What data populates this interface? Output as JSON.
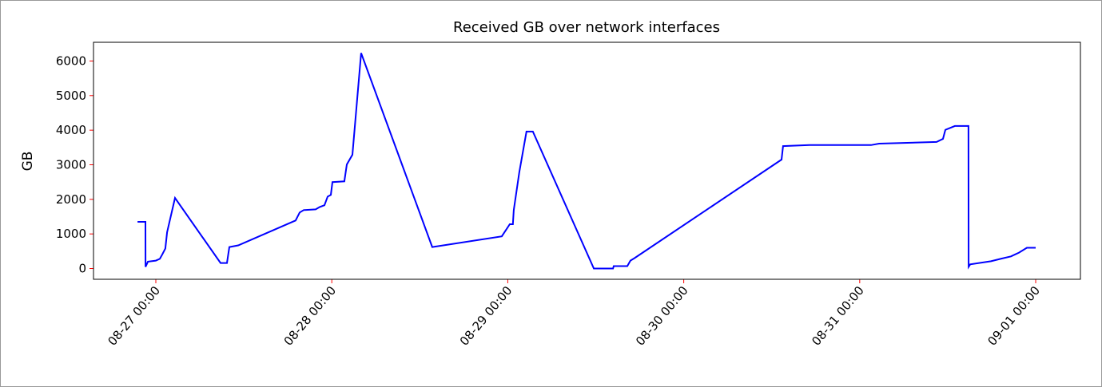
{
  "chart_data": {
    "type": "line",
    "title": "Received GB over network interfaces",
    "y_label": "GB",
    "x": [
      "08-26 21:30",
      "08-26 22:35",
      "08-26 22:36",
      "08-26 22:55",
      "08-27 00:00",
      "08-27 00:33",
      "08-27 00:52",
      "08-27 01:18",
      "08-27 01:32",
      "08-27 02:37",
      "08-27 08:50",
      "08-27 09:42",
      "08-27 10:02",
      "08-27 11:14",
      "08-27 19:04",
      "08-27 19:37",
      "08-27 20:10",
      "08-27 21:48",
      "08-27 22:21",
      "08-27 23:00",
      "08-27 23:26",
      "08-27 23:52",
      "08-28 00:05",
      "08-28 01:43",
      "08-28 02:03",
      "08-28 02:49",
      "08-28 04:00",
      "08-28 13:42",
      "08-28 23:11",
      "08-29 00:16",
      "08-29 00:42",
      "08-29 00:49",
      "08-29 01:34",
      "08-29 02:33",
      "08-29 03:25",
      "08-29 11:44",
      "08-29 14:21",
      "08-29 14:27",
      "08-29 16:18",
      "08-29 16:44",
      "08-29 17:17",
      "08-30 13:20",
      "08-30 13:33",
      "08-30 17:09",
      "08-31 01:33",
      "08-31 02:38",
      "08-31 10:29",
      "08-31 11:21",
      "08-31 11:41",
      "08-31 12:59",
      "08-31 14:50",
      "08-31 14:51",
      "08-31 15:04",
      "08-31 17:54",
      "08-31 19:13",
      "08-31 20:38",
      "08-31 21:43",
      "08-31 22:48",
      "09-01 00:00"
    ],
    "values": [
      1350,
      1350,
      50,
      200,
      230,
      280,
      400,
      580,
      1050,
      2040,
      160,
      160,
      620,
      670,
      1390,
      1620,
      1690,
      1710,
      1780,
      1830,
      2080,
      2130,
      2500,
      2520,
      3010,
      3290,
      6230,
      620,
      930,
      1280,
      1280,
      1690,
      2780,
      3960,
      3960,
      0,
      0,
      70,
      70,
      230,
      300,
      3150,
      3540,
      3570,
      3570,
      3610,
      3660,
      3750,
      4010,
      4120,
      4120,
      50,
      120,
      210,
      280,
      350,
      460,
      600,
      600
    ],
    "color": "blue",
    "tick_color": "red",
    "xlim": [
      "08-26 15:30",
      "09-01 06:06"
    ],
    "xticks": [
      "08-27 00:00",
      "08-28 00:00",
      "08-29 00:00",
      "08-30 00:00",
      "08-31 00:00",
      "09-01 00:00"
    ],
    "ylim": [
      -311,
      6541
    ],
    "yticks": [
      0,
      1000,
      2000,
      3000,
      4000,
      5000,
      6000
    ]
  }
}
